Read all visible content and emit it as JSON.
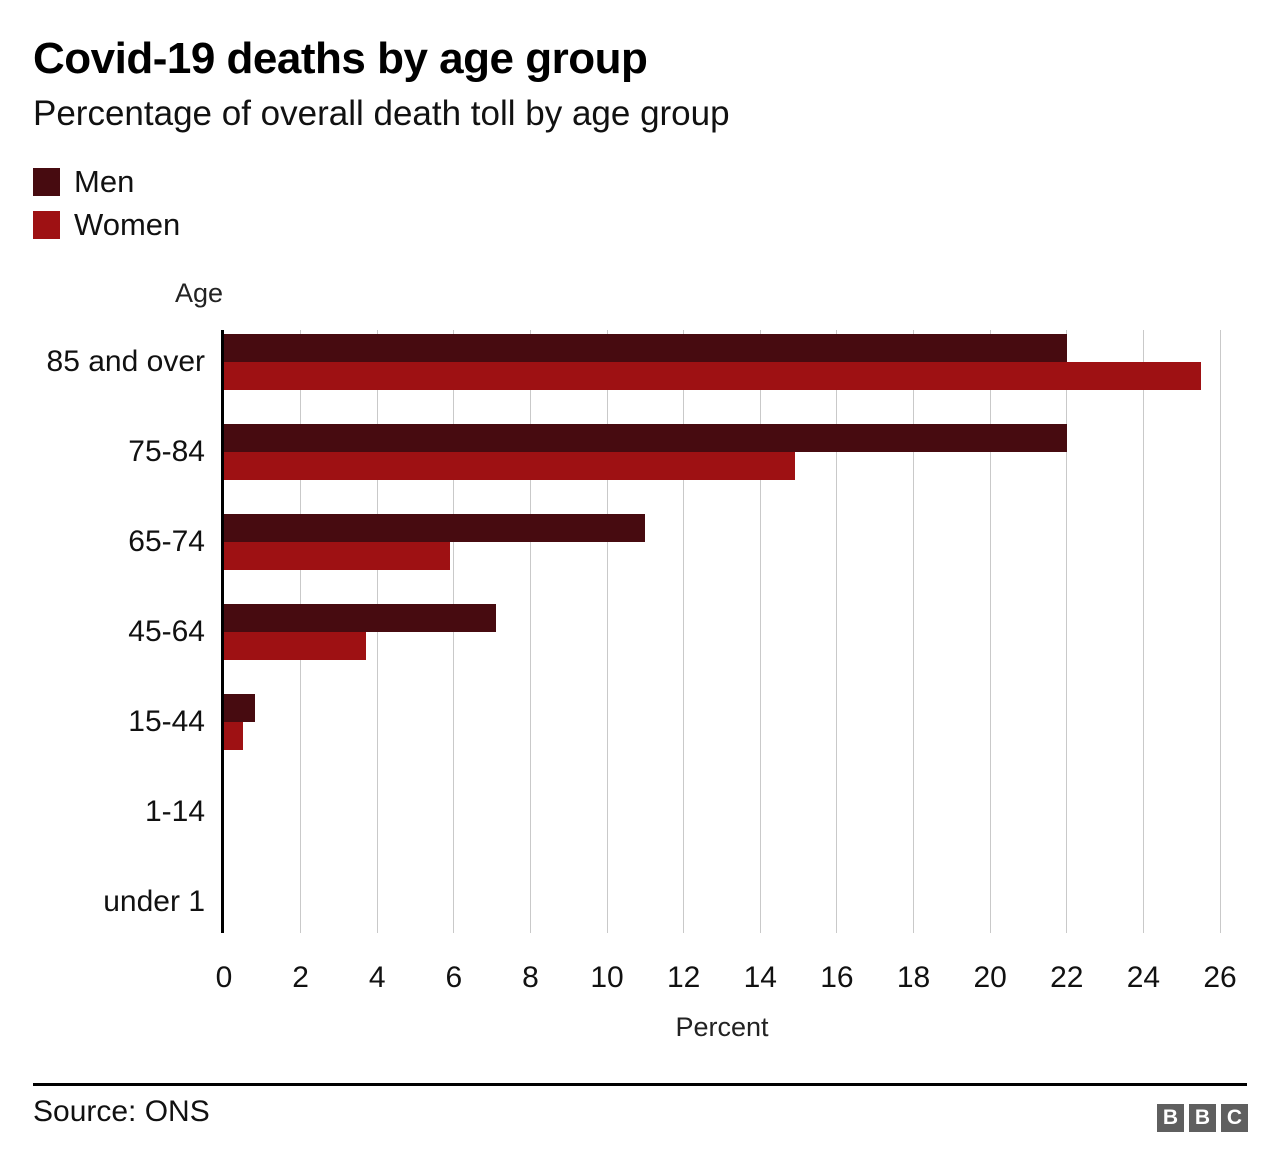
{
  "header": {
    "title": "Covid-19 deaths by age group",
    "subtitle": "Percentage of overall death toll by age group"
  },
  "chart_data": {
    "type": "bar",
    "orientation": "horizontal",
    "title": "Covid-19 deaths by age group",
    "subtitle": "Percentage of overall death toll by age group",
    "ylabel": "Age",
    "xlabel": "Percent",
    "categories": [
      "85 and over",
      "75-84",
      "65-74",
      "45-64",
      "15-44",
      "1-14",
      "under 1"
    ],
    "series": [
      {
        "name": "Men",
        "color": "#470b10",
        "values": [
          22.0,
          22.0,
          11.0,
          7.1,
          0.8,
          0,
          0
        ]
      },
      {
        "name": "Women",
        "color": "#9e1113",
        "values": [
          25.5,
          14.9,
          5.9,
          3.7,
          0.5,
          0,
          0
        ]
      }
    ],
    "xlim": [
      0,
      26
    ],
    "x_ticks": [
      0,
      2,
      4,
      6,
      8,
      10,
      12,
      14,
      16,
      18,
      20,
      22,
      24,
      26
    ],
    "grid": true,
    "legend_position": "top-left"
  },
  "footer": {
    "source": "Source: ONS",
    "logo_letters": [
      "B",
      "B",
      "C"
    ]
  }
}
